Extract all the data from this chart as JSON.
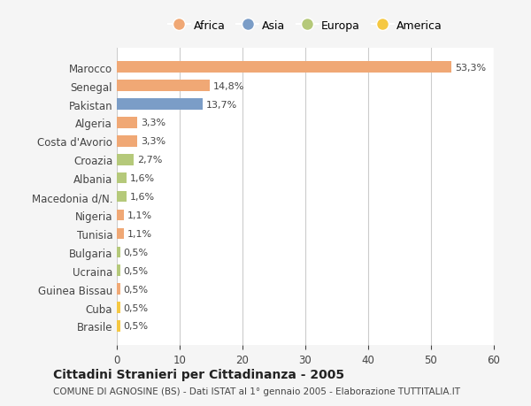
{
  "categories": [
    "Marocco",
    "Senegal",
    "Pakistan",
    "Algeria",
    "Costa d'Avorio",
    "Croazia",
    "Albania",
    "Macedonia d/N.",
    "Nigeria",
    "Tunisia",
    "Bulgaria",
    "Ucraina",
    "Guinea Bissau",
    "Cuba",
    "Brasile"
  ],
  "values": [
    53.3,
    14.8,
    13.7,
    3.3,
    3.3,
    2.7,
    1.6,
    1.6,
    1.1,
    1.1,
    0.5,
    0.5,
    0.5,
    0.5,
    0.5
  ],
  "labels": [
    "53,3%",
    "14,8%",
    "13,7%",
    "3,3%",
    "3,3%",
    "2,7%",
    "1,6%",
    "1,6%",
    "1,1%",
    "1,1%",
    "0,5%",
    "0,5%",
    "0,5%",
    "0,5%",
    "0,5%"
  ],
  "colors": [
    "#F0A875",
    "#F0A875",
    "#7B9DC7",
    "#F0A875",
    "#F0A875",
    "#B5C97A",
    "#B5C97A",
    "#B5C97A",
    "#F0A875",
    "#F0A875",
    "#B5C97A",
    "#B5C97A",
    "#F0A875",
    "#F5C842",
    "#F5C842"
  ],
  "legend_labels": [
    "Africa",
    "Asia",
    "Europa",
    "America"
  ],
  "legend_colors": [
    "#F0A875",
    "#7B9DC7",
    "#B5C97A",
    "#F5C842"
  ],
  "xlim": [
    0,
    60
  ],
  "xticks": [
    0,
    10,
    20,
    30,
    40,
    50,
    60
  ],
  "title": "Cittadini Stranieri per Cittadinanza - 2005",
  "subtitle": "COMUNE DI AGNOSINE (BS) - Dati ISTAT al 1° gennaio 2005 - Elaborazione TUTTITALIA.IT",
  "background_color": "#f5f5f5",
  "bar_background": "#ffffff"
}
